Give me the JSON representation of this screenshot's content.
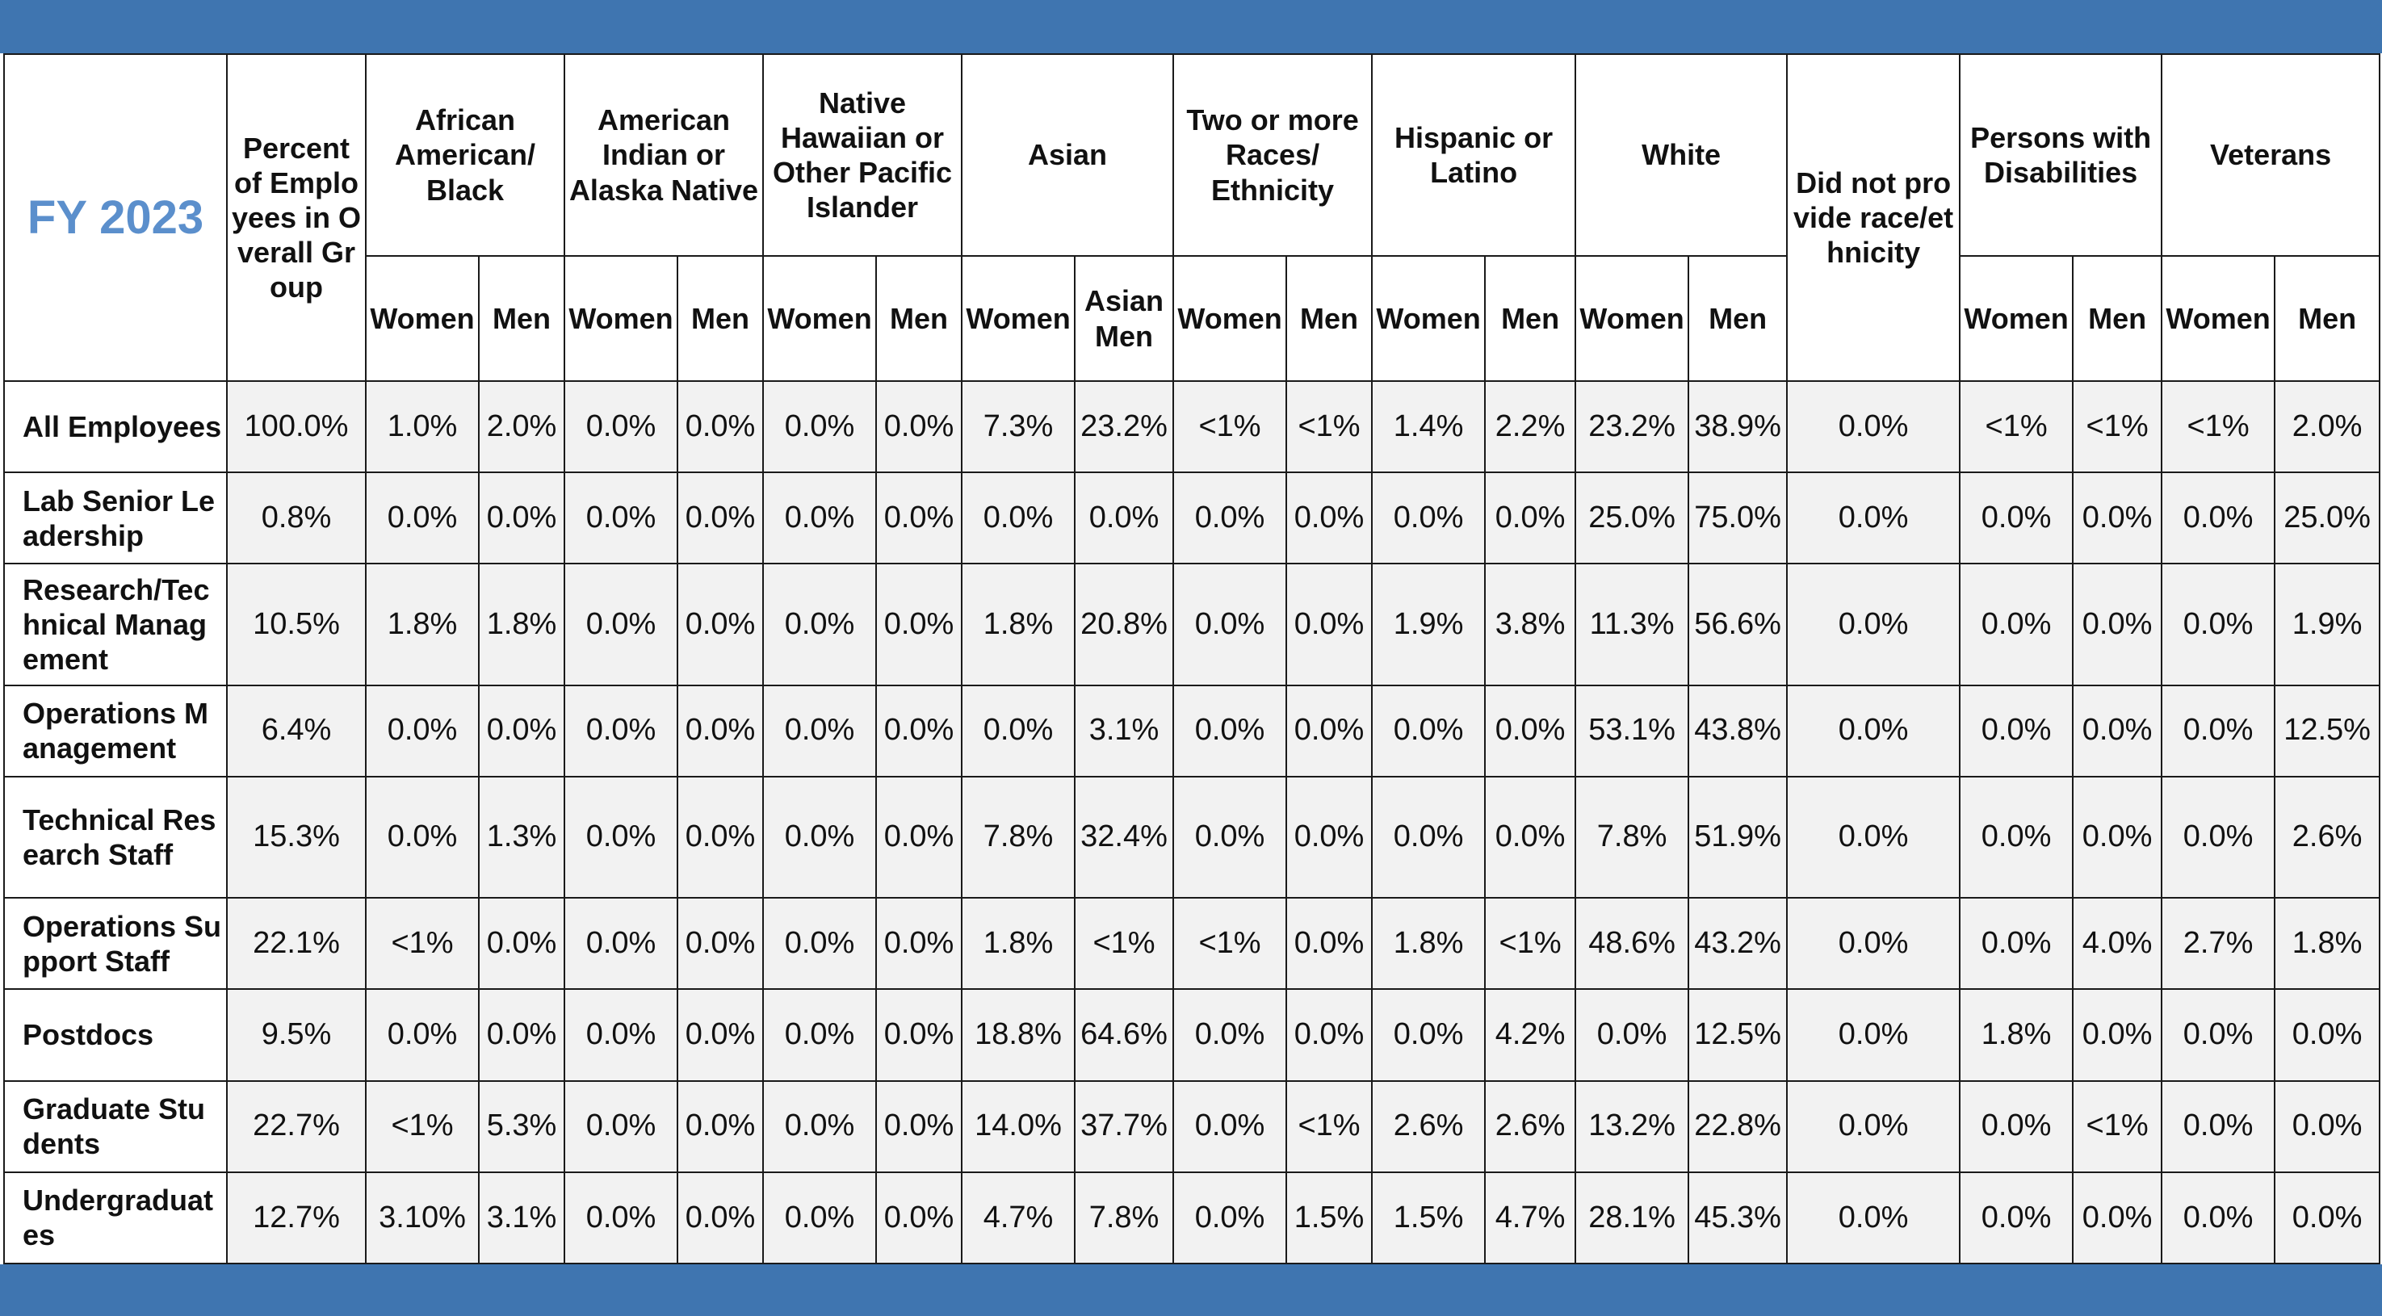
{
  "table": {
    "corner_title": "FY 2023",
    "percent_header": "Percent of Employees in Overall Group",
    "groups": [
      {
        "label": "African American/ Black",
        "sub": [
          "Women",
          "Men"
        ]
      },
      {
        "label": "American Indian or Alaska Native",
        "sub": [
          "Women",
          "Men"
        ]
      },
      {
        "label": "Native Hawaiian or Other Pacific Islander",
        "sub": [
          "Women",
          "Men"
        ]
      },
      {
        "label": "Asian",
        "sub": [
          "Women",
          "Asian Men"
        ]
      },
      {
        "label": "Two or more Races/ Ethnicity",
        "sub": [
          "Women",
          "Men"
        ]
      },
      {
        "label": "Hispanic or Latino",
        "sub": [
          "Women",
          "Men"
        ]
      },
      {
        "label": "White",
        "sub": [
          "Women",
          "Men"
        ]
      },
      {
        "label": "Did not provide race/ethnicity",
        "sub": []
      },
      {
        "label": "Persons with Disabilities",
        "sub": [
          "Women",
          "Men"
        ]
      },
      {
        "label": "Veterans",
        "sub": [
          "Women",
          "Men"
        ]
      }
    ],
    "rows": [
      {
        "label": "All Employees",
        "values": [
          "100.0%",
          "1.0%",
          "2.0%",
          "0.0%",
          "0.0%",
          "0.0%",
          "0.0%",
          "7.3%",
          "23.2%",
          "<1%",
          "<1%",
          "1.4%",
          "2.2%",
          "23.2%",
          "38.9%",
          "0.0%",
          "<1%",
          "<1%",
          "<1%",
          "2.0%"
        ]
      },
      {
        "label": "Lab Senior Leadership",
        "values": [
          "0.8%",
          "0.0%",
          "0.0%",
          "0.0%",
          "0.0%",
          "0.0%",
          "0.0%",
          "0.0%",
          "0.0%",
          "0.0%",
          "0.0%",
          "0.0%",
          "0.0%",
          "25.0%",
          "75.0%",
          "0.0%",
          "0.0%",
          "0.0%",
          "0.0%",
          "25.0%"
        ]
      },
      {
        "label": "Research/Technical Management",
        "values": [
          "10.5%",
          "1.8%",
          "1.8%",
          "0.0%",
          "0.0%",
          "0.0%",
          "0.0%",
          "1.8%",
          "20.8%",
          "0.0%",
          "0.0%",
          "1.9%",
          "3.8%",
          "11.3%",
          "56.6%",
          "0.0%",
          "0.0%",
          "0.0%",
          "0.0%",
          "1.9%"
        ]
      },
      {
        "label": "Operations Management",
        "values": [
          "6.4%",
          "0.0%",
          "0.0%",
          "0.0%",
          "0.0%",
          "0.0%",
          "0.0%",
          "0.0%",
          "3.1%",
          "0.0%",
          "0.0%",
          "0.0%",
          "0.0%",
          "53.1%",
          "43.8%",
          "0.0%",
          "0.0%",
          "0.0%",
          "0.0%",
          "12.5%"
        ]
      },
      {
        "label": "Technical Research Staff",
        "values": [
          "15.3%",
          "0.0%",
          "1.3%",
          "0.0%",
          "0.0%",
          "0.0%",
          "0.0%",
          "7.8%",
          "32.4%",
          "0.0%",
          "0.0%",
          "0.0%",
          "0.0%",
          "7.8%",
          "51.9%",
          "0.0%",
          "0.0%",
          "0.0%",
          "0.0%",
          "2.6%"
        ]
      },
      {
        "label": "Operations Support Staff",
        "values": [
          "22.1%",
          "<1%",
          "0.0%",
          "0.0%",
          "0.0%",
          "0.0%",
          "0.0%",
          "1.8%",
          "<1%",
          "<1%",
          "0.0%",
          "1.8%",
          "<1%",
          "48.6%",
          "43.2%",
          "0.0%",
          "0.0%",
          "4.0%",
          "2.7%",
          "1.8%"
        ]
      },
      {
        "label": "Postdocs",
        "values": [
          "9.5%",
          "0.0%",
          "0.0%",
          "0.0%",
          "0.0%",
          "0.0%",
          "0.0%",
          "18.8%",
          "64.6%",
          "0.0%",
          "0.0%",
          "0.0%",
          "4.2%",
          "0.0%",
          "12.5%",
          "0.0%",
          "1.8%",
          "0.0%",
          "0.0%",
          "0.0%"
        ]
      },
      {
        "label": "Graduate Students",
        "values": [
          "22.7%",
          "<1%",
          "5.3%",
          "0.0%",
          "0.0%",
          "0.0%",
          "0.0%",
          "14.0%",
          "37.7%",
          "0.0%",
          "<1%",
          "2.6%",
          "2.6%",
          "13.2%",
          "22.8%",
          "0.0%",
          "0.0%",
          "<1%",
          "0.0%",
          "0.0%"
        ]
      },
      {
        "label": "Undergraduates",
        "values": [
          "12.7%",
          "3.10%",
          "3.1%",
          "0.0%",
          "0.0%",
          "0.0%",
          "0.0%",
          "4.7%",
          "7.8%",
          "0.0%",
          "1.5%",
          "1.5%",
          "4.7%",
          "28.1%",
          "45.3%",
          "0.0%",
          "0.0%",
          "0.0%",
          "0.0%",
          "0.0%"
        ]
      }
    ]
  }
}
